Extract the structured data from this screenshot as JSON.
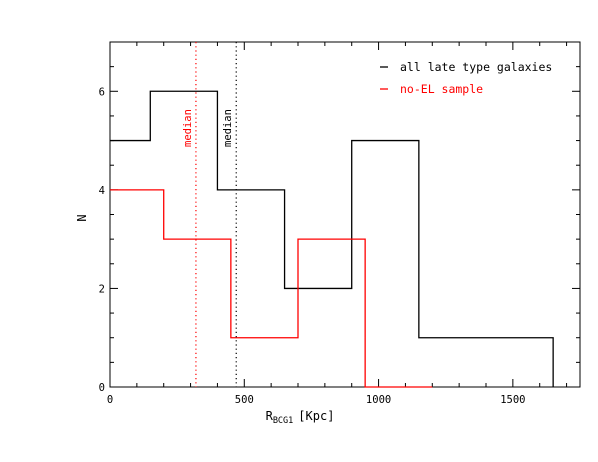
{
  "chart_data": {
    "type": "step histogram",
    "xlabel_main": "R",
    "xlabel_sub": "BCG1",
    "xlabel_unit": "[Kpc]",
    "ylabel": "N",
    "xlim": [
      0,
      1750
    ],
    "ylim": [
      0,
      7
    ],
    "x_ticks": [
      0,
      500,
      1000,
      1500
    ],
    "y_ticks": [
      0,
      2,
      4,
      6
    ],
    "grid": false,
    "legend_position": "top-right",
    "series": [
      {
        "name": "all late type galaxies",
        "color": "#000000",
        "edges": [
          0,
          150,
          400,
          650,
          900,
          1150,
          1650
        ],
        "counts": [
          5,
          6,
          4,
          2,
          5,
          1
        ],
        "median": 470
      },
      {
        "name": "no-EL sample",
        "color": "#ff0000",
        "edges": [
          0,
          200,
          450,
          700,
          950,
          1200
        ],
        "counts": [
          4,
          3,
          1,
          3,
          0
        ],
        "median": 320
      }
    ],
    "median_label": "median"
  }
}
